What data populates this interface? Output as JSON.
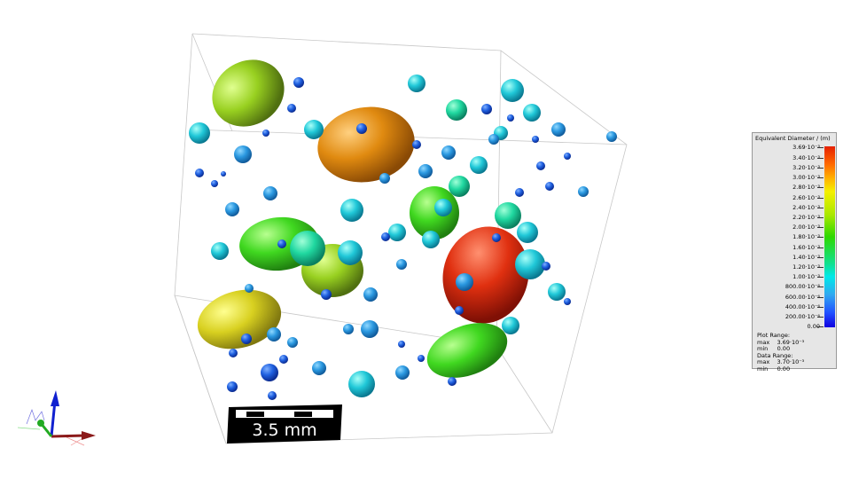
{
  "legend": {
    "title": "Equivalent Diameter / (m)",
    "labels": [
      "3.69·10⁻³",
      "3.40·10⁻³",
      "3.20·10⁻³",
      "3.00·10⁻³",
      "2.80·10⁻³",
      "2.60·10⁻³",
      "2.40·10⁻³",
      "2.20·10⁻³",
      "2.00·10⁻³",
      "1.80·10⁻³",
      "1.60·10⁻³",
      "1.40·10⁻³",
      "1.20·10⁻³",
      "1.00·10⁻³",
      "800.00·10⁻⁶",
      "600.00·10⁻⁶",
      "400.00·10⁻⁶",
      "200.00·10⁻⁶",
      "0.00"
    ],
    "plot_range_label": "Plot Range:",
    "plot_max_label": "max",
    "plot_max": "3.69·10⁻³",
    "plot_min_label": "min",
    "plot_min": "0.00",
    "data_range_label": "Data Range:",
    "data_max_label": "max",
    "data_max": "3.70·10⁻³",
    "data_min_label": "min",
    "data_min": "0.00",
    "colormap": [
      "#1000e0",
      "#2050ff",
      "#30a8f0",
      "#00e8e8",
      "#2ed800",
      "#f4f000",
      "#ffb400",
      "#e52000"
    ]
  },
  "scale_bar": {
    "label": "3.5 mm"
  },
  "axes_triad": {
    "x_color": "#8b1a1a",
    "y_color": "#22aa22",
    "z_color": "#1020d0"
  }
}
